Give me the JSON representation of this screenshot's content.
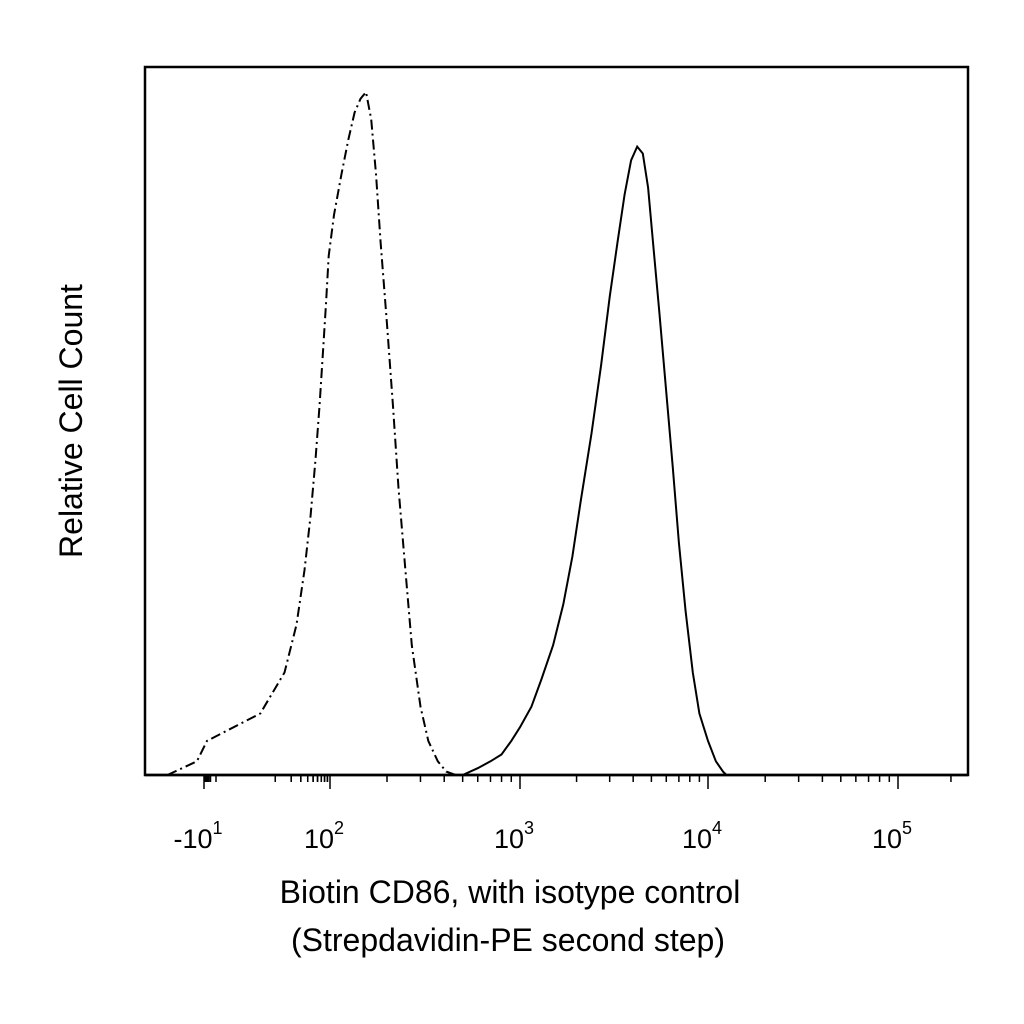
{
  "chart_data": {
    "type": "line",
    "title": "",
    "xlabel": "Biotin CD86, with isotype control",
    "xlabel_line2": "(Strepdavidin-PE second step)",
    "ylabel": "Relative Cell Count",
    "x_scale": "biexponential (log with linear region around 0)",
    "xlim": [
      -30,
      250000
    ],
    "ylim": [
      0,
      1.0
    ],
    "grid": false,
    "legend": "none",
    "x_ticks": [
      {
        "value": -10,
        "base": "-10",
        "exp": "1"
      },
      {
        "value": 100,
        "base": "10",
        "exp": "2"
      },
      {
        "value": 1000,
        "base": "10",
        "exp": "3"
      },
      {
        "value": 10000,
        "base": "10",
        "exp": "4"
      },
      {
        "value": 100000,
        "base": "10",
        "exp": "5"
      }
    ],
    "series": [
      {
        "style": "dashed",
        "color": "#000000",
        "x": [
          -25,
          -12,
          -5,
          5,
          15,
          25,
          35,
          45,
          55,
          65,
          75,
          85,
          95,
          105,
          115,
          125,
          135,
          145,
          155,
          165,
          175,
          185,
          200,
          215,
          230,
          250,
          270,
          300,
          330,
          370,
          410,
          460
        ],
        "y": [
          0.0,
          0.02,
          0.05,
          0.09,
          0.15,
          0.22,
          0.3,
          0.38,
          0.46,
          0.54,
          0.62,
          0.69,
          0.76,
          0.82,
          0.88,
          0.93,
          0.97,
          0.99,
          1.0,
          0.96,
          0.88,
          0.78,
          0.66,
          0.54,
          0.42,
          0.3,
          0.19,
          0.1,
          0.05,
          0.02,
          0.005,
          0.0
        ]
      },
      {
        "style": "solid",
        "color": "#000000",
        "x": [
          500,
          600,
          700,
          800,
          900,
          1000,
          1150,
          1300,
          1500,
          1700,
          1900,
          2100,
          2400,
          2700,
          3000,
          3300,
          3600,
          3900,
          4200,
          4500,
          4800,
          5100,
          5500,
          6000,
          6500,
          7000,
          7600,
          8300,
          9000,
          10000,
          11000,
          12000,
          12500
        ],
        "y": [
          0.0,
          0.01,
          0.02,
          0.03,
          0.05,
          0.07,
          0.1,
          0.14,
          0.19,
          0.25,
          0.32,
          0.4,
          0.5,
          0.6,
          0.7,
          0.78,
          0.85,
          0.9,
          0.92,
          0.91,
          0.86,
          0.78,
          0.68,
          0.56,
          0.45,
          0.34,
          0.24,
          0.15,
          0.09,
          0.05,
          0.02,
          0.005,
          0.0
        ]
      }
    ]
  }
}
